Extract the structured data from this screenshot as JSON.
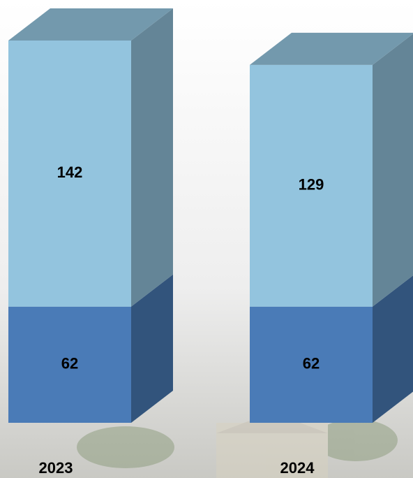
{
  "chart_data": {
    "type": "stacked-bar",
    "categories": [
      "2023",
      "2024"
    ],
    "series": [
      {
        "color": "#4a7bb7",
        "values": [
          62,
          62
        ]
      },
      {
        "color": "#93c4de",
        "values": [
          142,
          129
        ]
      }
    ]
  }
}
